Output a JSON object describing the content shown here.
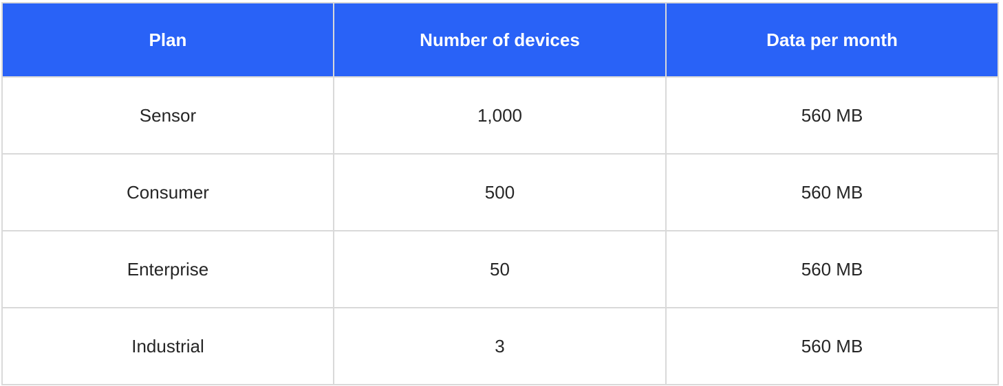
{
  "table": {
    "headers": [
      "Plan",
      "Number of devices",
      "Data per month"
    ],
    "rows": [
      [
        "Sensor",
        "1,000",
        "560 MB"
      ],
      [
        "Consumer",
        "500",
        "560 MB"
      ],
      [
        "Enterprise",
        "50",
        "560 MB"
      ],
      [
        "Industrial",
        "3",
        "560 MB"
      ]
    ]
  },
  "colors": {
    "header_background": "#2962f7",
    "header_text": "#ffffff",
    "body_text": "#262626",
    "grid_lines": "#d9d9d9"
  }
}
